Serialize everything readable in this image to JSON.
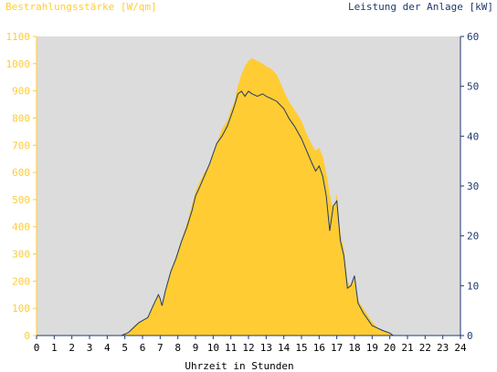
{
  "chart_data": {
    "type": "area",
    "left_title": "Bestrahlungsstärke [W/qm]",
    "right_title": "Leistung der Anlage [kW]",
    "xlabel": "Uhrzeit in Stunden",
    "xlim": [
      0,
      24
    ],
    "ylim_left": [
      0,
      1100
    ],
    "ylim_right": [
      0,
      60
    ],
    "x_ticks": [
      "0",
      "1",
      "2",
      "3",
      "4",
      "5",
      "6",
      "7",
      "8",
      "9",
      "10",
      "11",
      "12",
      "13",
      "14",
      "15",
      "16",
      "17",
      "18",
      "19",
      "20",
      "21",
      "22",
      "23",
      "24"
    ],
    "y_left_ticks": [
      "0",
      "100",
      "200",
      "300",
      "400",
      "500",
      "600",
      "700",
      "800",
      "900",
      "1000",
      "1100"
    ],
    "y_right_ticks": [
      "0",
      "10",
      "20",
      "30",
      "40",
      "50",
      "60"
    ],
    "colors": {
      "irradiance": "#FFCC33",
      "power": "#1F3A6E",
      "plot_bg": "#DCDCDC",
      "left_axis": "#FFCC33",
      "right_axis": "#1F3A6E"
    },
    "series": [
      {
        "axis": "left",
        "style": "filled-area",
        "x": [
          0,
          4.8,
          5.0,
          5.2,
          5.5,
          5.8,
          6.0,
          6.3,
          6.6,
          6.9,
          7.0,
          7.1,
          7.3,
          7.6,
          7.9,
          8.2,
          8.5,
          8.8,
          9.0,
          9.2,
          9.5,
          9.8,
          10.0,
          10.2,
          10.5,
          10.8,
          11.0,
          11.2,
          11.4,
          11.6,
          11.8,
          12.0,
          12.2,
          12.5,
          12.8,
          13.0,
          13.3,
          13.6,
          14.0,
          14.3,
          14.6,
          15.0,
          15.3,
          15.6,
          15.8,
          16.0,
          16.2,
          16.4,
          16.6,
          16.8,
          17.0,
          17.2,
          17.4,
          17.6,
          17.8,
          18.0,
          18.2,
          18.5,
          18.8,
          19.0,
          19.3,
          19.6,
          20.0,
          20.2,
          21.0,
          24.0
        ],
        "values": [
          0,
          0,
          5,
          12,
          35,
          50,
          55,
          70,
          110,
          150,
          140,
          115,
          170,
          240,
          290,
          350,
          410,
          480,
          530,
          560,
          600,
          630,
          670,
          710,
          760,
          790,
          830,
          860,
          920,
          960,
          990,
          1010,
          1020,
          1010,
          1000,
          990,
          980,
          960,
          900,
          860,
          830,
          790,
          740,
          700,
          680,
          690,
          660,
          600,
          520,
          460,
          520,
          380,
          320,
          200,
          180,
          220,
          130,
          100,
          70,
          50,
          30,
          20,
          10,
          0,
          0,
          0
        ]
      },
      {
        "axis": "right",
        "style": "line",
        "x": [
          0,
          4.8,
          5.0,
          5.2,
          5.5,
          5.8,
          6.0,
          6.3,
          6.6,
          6.9,
          7.0,
          7.1,
          7.3,
          7.6,
          7.9,
          8.2,
          8.5,
          8.8,
          9.0,
          9.2,
          9.5,
          9.8,
          10.0,
          10.2,
          10.5,
          10.8,
          11.0,
          11.2,
          11.4,
          11.6,
          11.8,
          12.0,
          12.2,
          12.5,
          12.8,
          13.0,
          13.3,
          13.6,
          14.0,
          14.3,
          14.6,
          15.0,
          15.3,
          15.6,
          15.8,
          16.0,
          16.2,
          16.4,
          16.6,
          16.8,
          17.0,
          17.2,
          17.4,
          17.6,
          17.8,
          18.0,
          18.2,
          18.5,
          18.8,
          19.0,
          19.3,
          19.6,
          20.0,
          20.2,
          21.0,
          24.0
        ],
        "values": [
          0,
          0,
          0.3,
          0.6,
          1.6,
          2.6,
          3.0,
          3.6,
          6.0,
          8.2,
          7.4,
          6.0,
          9.0,
          12.8,
          15.5,
          18.8,
          21.6,
          25.0,
          28.0,
          29.5,
          32.0,
          34.5,
          36.5,
          38.5,
          40.0,
          42.0,
          44.0,
          46.0,
          48.5,
          49.0,
          48.0,
          49.0,
          48.5,
          48.0,
          48.5,
          48.0,
          47.5,
          47.0,
          45.5,
          43.5,
          42.0,
          39.5,
          37.0,
          34.5,
          33.0,
          34.0,
          32.0,
          28.0,
          21.0,
          26.0,
          27.0,
          19.0,
          16.0,
          9.5,
          10.0,
          12.0,
          6.5,
          4.5,
          3.0,
          2.0,
          1.5,
          1.0,
          0.5,
          0,
          0,
          0
        ]
      }
    ]
  }
}
